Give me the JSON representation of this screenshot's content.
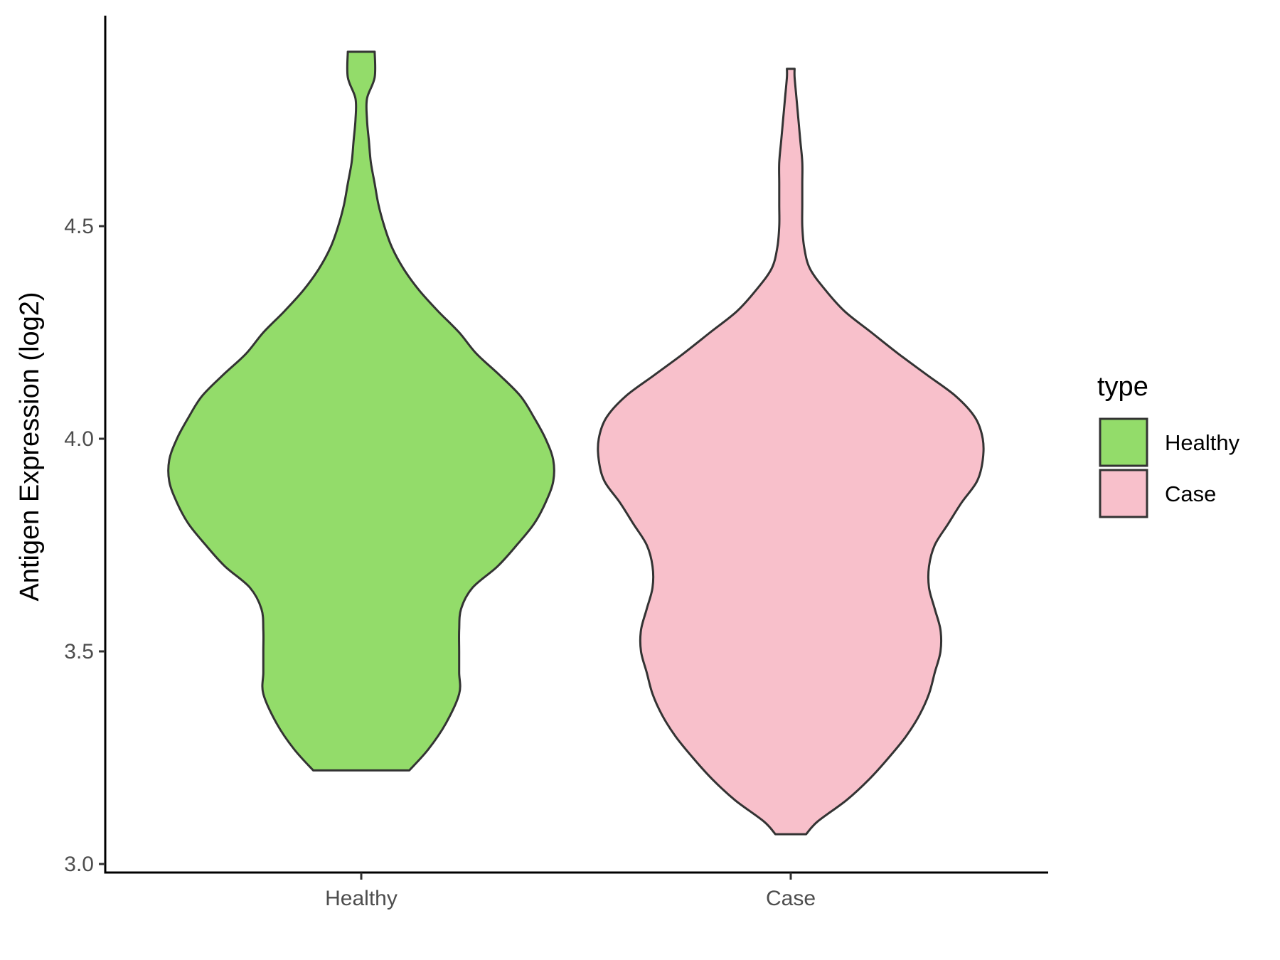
{
  "chart_data": {
    "type": "violin",
    "title": "",
    "xlabel": "",
    "ylabel": "Antigen Expression (log2)",
    "ylim": [
      3.0,
      5.0
    ],
    "yticks": [
      3.0,
      3.5,
      4.0,
      4.5
    ],
    "ytick_labels": [
      "3.0",
      "3.5",
      "4.0",
      "4.5"
    ],
    "categories": [
      "Healthy",
      "Case"
    ],
    "grid": false,
    "legend": {
      "title": "type",
      "position": "right",
      "entries": [
        {
          "label": "Healthy",
          "color": "#93dc6a"
        },
        {
          "label": "Case",
          "color": "#f8c0cb"
        }
      ]
    },
    "series": [
      {
        "category": "Healthy",
        "color": "#93dc6a",
        "range": [
          3.22,
          4.91
        ],
        "density_profile": [
          [
            3.22,
            0.25
          ],
          [
            3.27,
            0.35
          ],
          [
            3.33,
            0.44
          ],
          [
            3.4,
            0.51
          ],
          [
            3.45,
            0.51
          ],
          [
            3.5,
            0.51
          ],
          [
            3.55,
            0.51
          ],
          [
            3.6,
            0.52
          ],
          [
            3.65,
            0.58
          ],
          [
            3.7,
            0.71
          ],
          [
            3.75,
            0.81
          ],
          [
            3.8,
            0.9
          ],
          [
            3.85,
            0.96
          ],
          [
            3.9,
            1.0
          ],
          [
            3.95,
            1.0
          ],
          [
            4.0,
            0.96
          ],
          [
            4.05,
            0.9
          ],
          [
            4.1,
            0.83
          ],
          [
            4.15,
            0.72
          ],
          [
            4.2,
            0.6
          ],
          [
            4.25,
            0.51
          ],
          [
            4.3,
            0.4
          ],
          [
            4.35,
            0.3
          ],
          [
            4.4,
            0.22
          ],
          [
            4.45,
            0.16
          ],
          [
            4.5,
            0.12
          ],
          [
            4.55,
            0.09
          ],
          [
            4.6,
            0.07
          ],
          [
            4.65,
            0.05
          ],
          [
            4.7,
            0.04
          ],
          [
            4.75,
            0.03
          ],
          [
            4.8,
            0.03
          ],
          [
            4.85,
            0.07
          ],
          [
            4.91,
            0.07
          ]
        ]
      },
      {
        "category": "Case",
        "color": "#f8c0cb",
        "range": [
          3.07,
          4.87
        ],
        "density_profile": [
          [
            3.07,
            0.08
          ],
          [
            3.1,
            0.14
          ],
          [
            3.15,
            0.29
          ],
          [
            3.2,
            0.41
          ],
          [
            3.25,
            0.51
          ],
          [
            3.3,
            0.6
          ],
          [
            3.35,
            0.67
          ],
          [
            3.4,
            0.72
          ],
          [
            3.45,
            0.75
          ],
          [
            3.5,
            0.78
          ],
          [
            3.55,
            0.78
          ],
          [
            3.6,
            0.75
          ],
          [
            3.65,
            0.72
          ],
          [
            3.7,
            0.72
          ],
          [
            3.75,
            0.75
          ],
          [
            3.8,
            0.82
          ],
          [
            3.85,
            0.89
          ],
          [
            3.9,
            0.97
          ],
          [
            3.95,
            1.0
          ],
          [
            4.0,
            1.0
          ],
          [
            4.05,
            0.96
          ],
          [
            4.1,
            0.86
          ],
          [
            4.15,
            0.71
          ],
          [
            4.2,
            0.56
          ],
          [
            4.25,
            0.42
          ],
          [
            4.3,
            0.28
          ],
          [
            4.35,
            0.18
          ],
          [
            4.4,
            0.1
          ],
          [
            4.45,
            0.07
          ],
          [
            4.5,
            0.06
          ],
          [
            4.55,
            0.06
          ],
          [
            4.6,
            0.06
          ],
          [
            4.65,
            0.06
          ],
          [
            4.7,
            0.05
          ],
          [
            4.75,
            0.04
          ],
          [
            4.8,
            0.03
          ],
          [
            4.85,
            0.02
          ],
          [
            4.87,
            0.02
          ]
        ]
      }
    ]
  }
}
